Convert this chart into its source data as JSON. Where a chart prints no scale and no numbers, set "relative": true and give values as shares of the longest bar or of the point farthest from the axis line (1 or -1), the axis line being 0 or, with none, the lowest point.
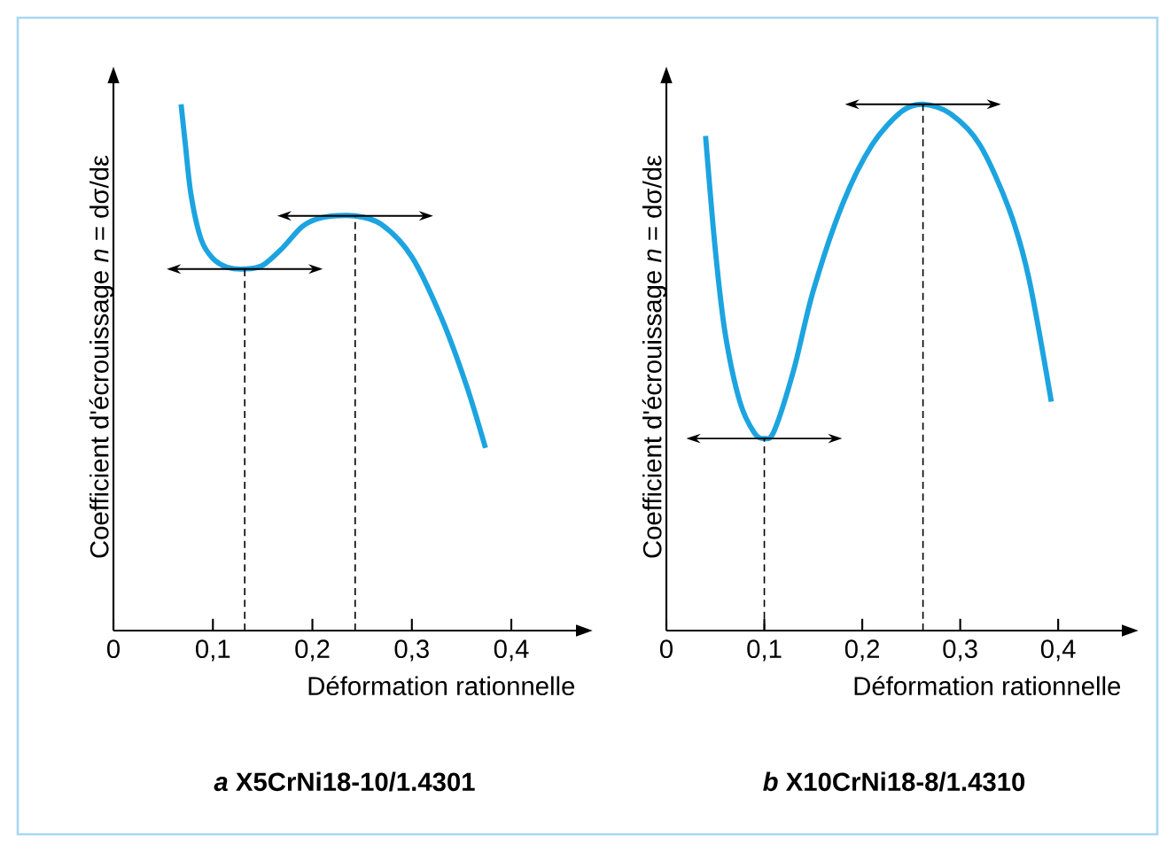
{
  "chart_data": [
    {
      "type": "line",
      "title": "*a* X5CrNi18-10/1.4301",
      "xlabel": "Déformation rationnelle",
      "ylabel": "Coefficient d'écrouissage *n* = dσ/dε",
      "relative": true,
      "marker": "none",
      "xlim": [
        0,
        0.465
      ],
      "xticks": [
        0,
        {
          "value": 0.1,
          "label": "0,1"
        },
        {
          "value": 0.2,
          "label": "0,2"
        },
        {
          "value": 0.3,
          "label": "0,3"
        },
        {
          "value": 0.4,
          "label": "0,4"
        }
      ],
      "x": [
        0.068,
        0.072,
        0.078,
        0.088,
        0.1,
        0.115,
        0.132,
        0.15,
        0.17,
        0.19,
        0.21,
        0.243,
        0.27,
        0.3,
        0.33,
        0.355,
        0.374
      ],
      "series": [
        {
          "color": "#1ca4e0",
          "values": [
            1.0,
            0.929,
            0.828,
            0.744,
            0.707,
            0.69,
            0.687,
            0.694,
            0.727,
            0.768,
            0.785,
            0.788,
            0.771,
            0.71,
            0.593,
            0.465,
            0.347
          ]
        }
      ],
      "ref_lines": [
        {
          "axis": "x",
          "value": 0.132,
          "line_style": "dashed"
        },
        {
          "axis": "x",
          "value": 0.243,
          "line_style": "dashed"
        }
      ]
    },
    {
      "type": "line",
      "title": "*b* X10CrNi18-8/1.4310",
      "xlabel": "Déformation rationnelle",
      "ylabel": "Coefficient d'écrouissage *n* = dσ/dε",
      "relative": true,
      "marker": "none",
      "xlim": [
        0,
        0.465
      ],
      "xticks": [
        0,
        {
          "value": 0.1,
          "label": "0,1"
        },
        {
          "value": 0.2,
          "label": "0,2"
        },
        {
          "value": 0.3,
          "label": "0,3"
        },
        {
          "value": 0.4,
          "label": "0,4"
        }
      ],
      "x": [
        0.04,
        0.05,
        0.06,
        0.075,
        0.09,
        0.1,
        0.11,
        0.13,
        0.15,
        0.18,
        0.21,
        0.24,
        0.262,
        0.29,
        0.32,
        0.35,
        0.37,
        0.393
      ],
      "series": [
        {
          "color": "#1ca4e0",
          "values": [
            0.94,
            0.723,
            0.565,
            0.435,
            0.375,
            0.365,
            0.379,
            0.495,
            0.646,
            0.811,
            0.923,
            0.986,
            1.0,
            0.982,
            0.923,
            0.8,
            0.67,
            0.435
          ]
        }
      ],
      "ref_lines": [
        {
          "axis": "x",
          "value": 0.1,
          "line_style": "dashed"
        },
        {
          "axis": "x",
          "value": 0.262,
          "line_style": "dashed"
        }
      ]
    }
  ]
}
